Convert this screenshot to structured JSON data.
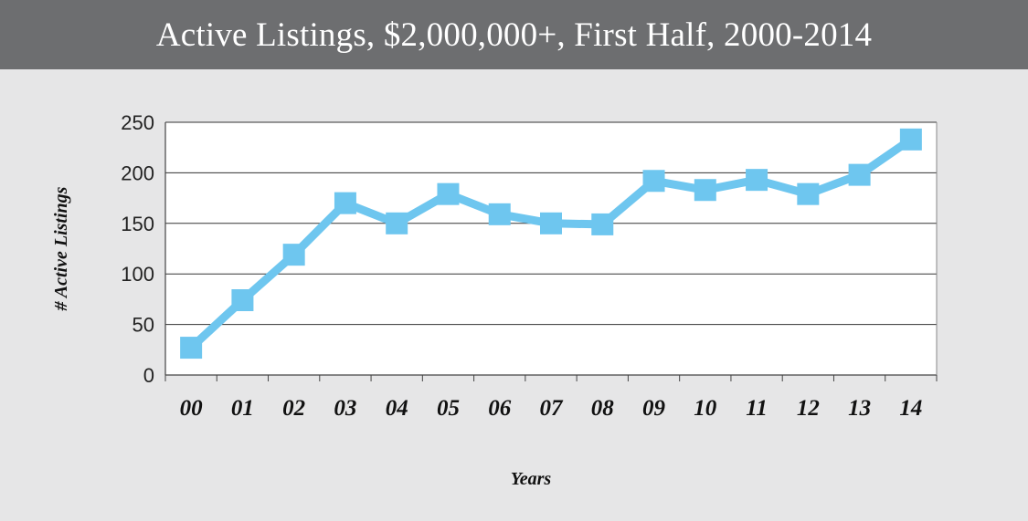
{
  "title": "Active Listings, $2,000,000+, First Half, 2000-2014",
  "colors": {
    "title_bar": "#6d6e70",
    "background": "#e6e6e7",
    "plot_background": "#ffffff",
    "series": "#6ec6ef",
    "gridline": "#333333"
  },
  "chart_data": {
    "type": "line",
    "title": "Active Listings, $2,000,000+, First Half, 2000-2014",
    "xlabel": "Years",
    "ylabel": "# Active Listings",
    "categories": [
      "00",
      "01",
      "02",
      "03",
      "04",
      "05",
      "06",
      "07",
      "08",
      "09",
      "10",
      "11",
      "12",
      "13",
      "14"
    ],
    "series": [
      {
        "values": [
          27,
          74,
          119,
          170,
          150,
          179,
          159,
          150,
          149,
          192,
          183,
          193,
          179,
          198,
          233
        ],
        "marker": "square"
      }
    ],
    "ylim": [
      0,
      250
    ],
    "yticks": [
      0,
      50,
      100,
      150,
      200,
      250
    ],
    "grid": true,
    "legend": "none"
  }
}
